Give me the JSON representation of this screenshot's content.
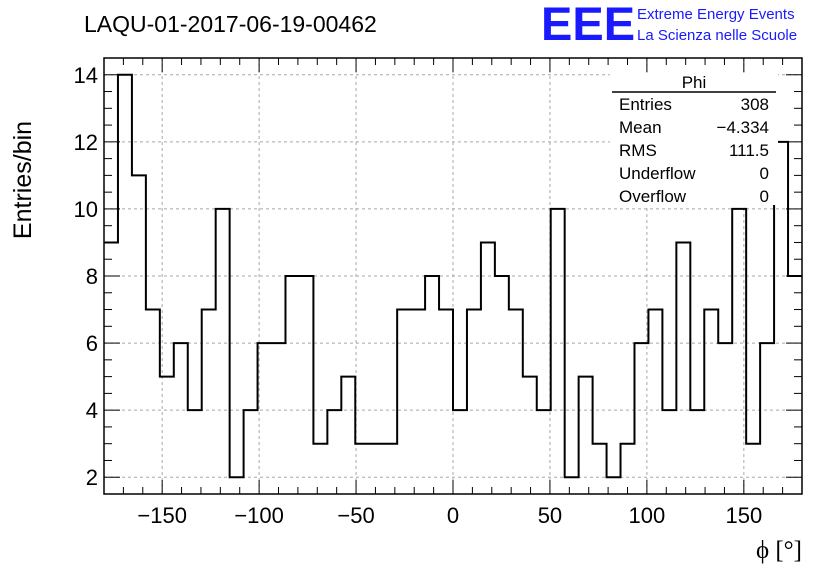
{
  "header": {
    "title": "LAQU-01-2017-06-19-00462",
    "logo_mark": "EEE",
    "logo_line1": "Extreme Energy Events",
    "logo_line2": "La Scienza nelle Scuole"
  },
  "stats_box": {
    "name": "Phi",
    "rows": [
      {
        "label": "Entries",
        "value": "308"
      },
      {
        "label": "Mean",
        "value": "−4.334"
      },
      {
        "label": "RMS",
        "value": "111.5"
      },
      {
        "label": "Underflow",
        "value": "0"
      },
      {
        "label": "Overflow",
        "value": "0"
      }
    ]
  },
  "chart_data": {
    "type": "bar",
    "title": "LAQU-01-2017-06-19-00462",
    "xlabel": "ϕ [°]",
    "ylabel": "Entries/bin",
    "xlim": [
      -180,
      180
    ],
    "ylim": [
      1.5,
      14.5
    ],
    "bin_width": 7.2,
    "x_ticks": [
      -150,
      -100,
      -50,
      0,
      50,
      100,
      150
    ],
    "x_tick_labels": [
      "−150",
      "−100",
      "−50",
      "0",
      "50",
      "100",
      "150"
    ],
    "y_ticks": [
      2,
      4,
      6,
      8,
      10,
      12,
      14
    ],
    "y_tick_labels": [
      "2",
      "4",
      "6",
      "8",
      "10",
      "12",
      "14"
    ],
    "grid": true,
    "legend": "stats box top-right",
    "line_color": "#000000",
    "values": [
      9,
      14,
      11,
      7,
      5,
      6,
      4,
      7,
      10,
      2,
      4,
      6,
      6,
      8,
      8,
      3,
      4,
      5,
      3,
      3,
      3,
      7,
      7,
      8,
      7,
      4,
      7,
      9,
      8,
      7,
      5,
      4,
      10,
      2,
      5,
      3,
      2,
      3,
      6,
      7,
      4,
      9,
      4,
      7,
      6,
      10,
      3,
      6,
      12,
      8
    ]
  }
}
